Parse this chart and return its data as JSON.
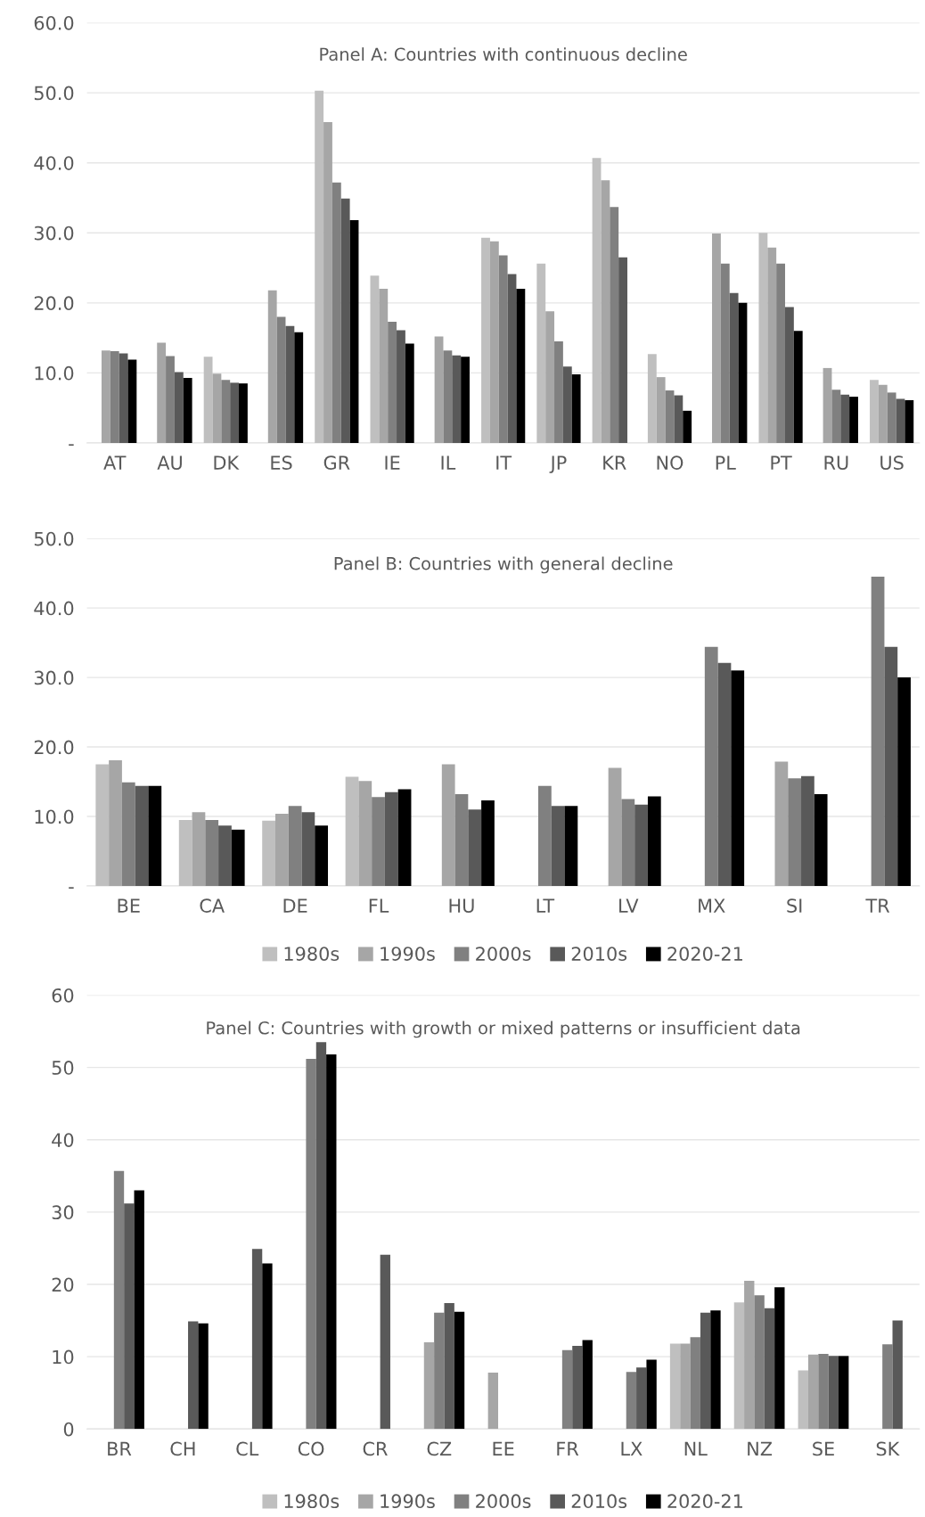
{
  "chart_data": [
    {
      "type": "bar",
      "title": "Panel A: Countries with continuous decline",
      "categories": [
        "AT",
        "AU",
        "DK",
        "ES",
        "GR",
        "IE",
        "IL",
        "IT",
        "JP",
        "KR",
        "NO",
        "PL",
        "PT",
        "RU",
        "US"
      ],
      "series": [
        {
          "color": "#bfbfbf",
          "values": [
            null,
            null,
            12.3,
            null,
            50.3,
            23.9,
            null,
            29.3,
            25.6,
            40.7,
            12.7,
            null,
            30.0,
            null,
            9.0
          ]
        },
        {
          "color": "#a6a6a6",
          "values": [
            13.2,
            14.3,
            9.9,
            21.8,
            45.8,
            22.0,
            15.2,
            28.8,
            18.8,
            37.5,
            9.4,
            29.9,
            27.9,
            10.7,
            8.3
          ]
        },
        {
          "color": "#808080",
          "values": [
            13.1,
            12.4,
            9.0,
            18.0,
            37.2,
            17.3,
            13.2,
            26.8,
            14.5,
            33.7,
            7.5,
            25.6,
            25.6,
            7.6,
            7.2
          ]
        },
        {
          "color": "#595959",
          "values": [
            12.8,
            10.1,
            8.6,
            16.7,
            34.9,
            16.1,
            12.5,
            24.1,
            10.9,
            26.5,
            6.8,
            21.4,
            19.4,
            6.9,
            6.3
          ]
        },
        {
          "color": "#000000",
          "values": [
            11.9,
            9.3,
            8.5,
            15.8,
            31.8,
            14.2,
            12.3,
            22.0,
            9.8,
            null,
            4.6,
            20.0,
            16.0,
            6.6,
            6.1
          ]
        }
      ],
      "ylim": [
        0,
        60
      ],
      "yticks": [
        {
          "value": 0,
          "label": "-"
        },
        {
          "value": 10,
          "label": "10.0"
        },
        {
          "value": 20,
          "label": "20.0"
        },
        {
          "value": 30,
          "label": "30.0"
        },
        {
          "value": 40,
          "label": "40.0"
        },
        {
          "value": 50,
          "label": "50.0"
        },
        {
          "value": 60,
          "label": "60.0"
        }
      ],
      "grid": "y",
      "legend": false
    },
    {
      "type": "bar",
      "title": "Panel B: Countries with general decline",
      "categories": [
        "BE",
        "CA",
        "DE",
        "FL",
        "HU",
        "LT",
        "LV",
        "MX",
        "SI",
        "TR"
      ],
      "series": [
        {
          "name": "1980s",
          "color": "#bfbfbf",
          "values": [
            17.5,
            9.5,
            9.4,
            15.7,
            null,
            null,
            null,
            null,
            null,
            null
          ]
        },
        {
          "name": "1990s",
          "color": "#a6a6a6",
          "values": [
            18.1,
            10.6,
            10.4,
            15.1,
            17.5,
            null,
            17.0,
            null,
            17.9,
            null
          ]
        },
        {
          "name": "2000s",
          "color": "#808080",
          "values": [
            14.9,
            9.5,
            11.5,
            12.8,
            13.2,
            14.4,
            12.5,
            34.4,
            15.5,
            44.5
          ]
        },
        {
          "name": "2010s",
          "color": "#595959",
          "values": [
            14.4,
            8.7,
            10.6,
            13.5,
            11.0,
            11.5,
            11.7,
            32.1,
            15.8,
            34.4
          ]
        },
        {
          "name": "2020-21",
          "color": "#000000",
          "values": [
            14.4,
            8.1,
            8.7,
            13.9,
            12.3,
            11.5,
            12.9,
            31.0,
            13.2,
            30.0
          ]
        }
      ],
      "ylim": [
        0,
        50
      ],
      "yticks": [
        {
          "value": 0,
          "label": "-"
        },
        {
          "value": 10,
          "label": "10.0"
        },
        {
          "value": 20,
          "label": "20.0"
        },
        {
          "value": 30,
          "label": "30.0"
        },
        {
          "value": 40,
          "label": "40.0"
        },
        {
          "value": 50,
          "label": "50.0"
        }
      ],
      "grid": "y",
      "legend": "bottom"
    },
    {
      "type": "bar",
      "title": "Panel C: Countries with growth or mixed patterns or insufficient data",
      "categories": [
        "BR",
        "CH",
        "CL",
        "CO",
        "CR",
        "CZ",
        "EE",
        "FR",
        "LX",
        "NL",
        "NZ",
        "SE",
        "SK"
      ],
      "series": [
        {
          "name": "1980s",
          "color": "#bfbfbf",
          "values": [
            null,
            null,
            null,
            null,
            null,
            null,
            null,
            null,
            null,
            11.8,
            17.5,
            8.1,
            null
          ]
        },
        {
          "name": "1990s",
          "color": "#a6a6a6",
          "values": [
            null,
            null,
            null,
            null,
            null,
            12.0,
            7.8,
            null,
            null,
            11.8,
            20.5,
            10.3,
            null
          ]
        },
        {
          "name": "2000s",
          "color": "#808080",
          "values": [
            35.7,
            null,
            null,
            51.2,
            null,
            16.1,
            null,
            10.9,
            7.9,
            12.7,
            18.5,
            10.4,
            11.7
          ]
        },
        {
          "name": "2010s",
          "color": "#595959",
          "values": [
            31.2,
            14.9,
            24.9,
            53.5,
            24.1,
            17.4,
            null,
            11.5,
            8.5,
            16.1,
            16.7,
            10.1,
            15.0
          ]
        },
        {
          "name": "2020-21",
          "color": "#000000",
          "values": [
            33.0,
            14.6,
            22.9,
            51.8,
            null,
            16.2,
            null,
            12.3,
            9.6,
            16.4,
            19.6,
            10.1,
            null
          ]
        }
      ],
      "ylim": [
        0,
        60
      ],
      "yticks": [
        0,
        10,
        20,
        30,
        40,
        50,
        60
      ],
      "grid": "y",
      "legend": "bottom"
    }
  ]
}
